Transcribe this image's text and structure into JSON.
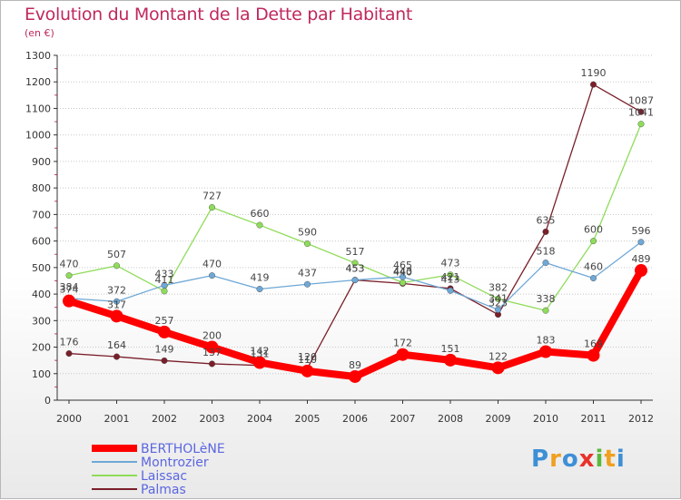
{
  "chart_data": {
    "type": "line",
    "title": "Evolution du Montant de la Dette par Habitant",
    "subtitle": "(en €)",
    "x": [
      "2000",
      "2001",
      "2002",
      "2003",
      "2004",
      "2005",
      "2006",
      "2007",
      "2008",
      "2009",
      "2010",
      "2011",
      "2012"
    ],
    "ylim": [
      0,
      1300
    ],
    "yticks": [
      0,
      100,
      200,
      300,
      400,
      500,
      600,
      700,
      800,
      900,
      1000,
      1100,
      1200,
      1300
    ],
    "grid": "horizontal-dotted",
    "legend": "bottom-left",
    "series": [
      {
        "name": "BERTHOLèNE",
        "color": "#ff0000",
        "values": [
          374,
          317,
          257,
          200,
          142,
          110,
          89,
          172,
          151,
          122,
          183,
          169,
          489
        ],
        "labels": [
          "374",
          "317",
          "257",
          "200",
          "142",
          "110",
          "89",
          "172",
          "151",
          "122",
          "183",
          "169",
          "489"
        ]
      },
      {
        "name": "Montrozier",
        "color": "#6fa8d6",
        "values": [
          384,
          372,
          433,
          470,
          419,
          437,
          453,
          465,
          413,
          341,
          518,
          460,
          596
        ],
        "labels": [
          "384",
          "372",
          "433",
          "470",
          "419",
          "437",
          "453",
          "465",
          "413",
          "341",
          "518",
          "460",
          "596"
        ]
      },
      {
        "name": "Laissac",
        "color": "#8fdc5a",
        "values": [
          470,
          507,
          411,
          727,
          660,
          590,
          517,
          443,
          473,
          382,
          338,
          600,
          1041
        ],
        "labels": [
          "470",
          "507",
          "411",
          "727",
          "660",
          "590",
          "517",
          "443",
          "473",
          "382",
          "338",
          "600",
          "1041"
        ]
      },
      {
        "name": "Palmas",
        "color": "#7a1f2a",
        "values": [
          176,
          164,
          149,
          137,
          131,
          120,
          453,
          440,
          421,
          323,
          635,
          1190,
          1087
        ],
        "labels": [
          "176",
          "164",
          "149",
          "137",
          "131",
          "120",
          "453",
          "440",
          "421",
          "323",
          "635",
          "1190",
          "1087"
        ]
      }
    ]
  },
  "logo": {
    "letters": [
      "P",
      "r",
      "o",
      "x",
      "i",
      "t",
      "i"
    ],
    "colors": [
      "#3d8fd6",
      "#f0a020",
      "#3d8fd6",
      "#e8322a",
      "#5cb83c",
      "#f0a020",
      "#3d8fd6"
    ]
  }
}
